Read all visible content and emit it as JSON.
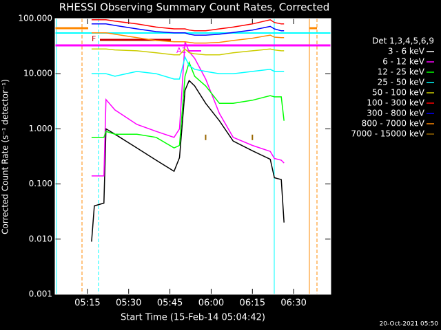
{
  "chart_data": {
    "type": "line",
    "title": "RHESSI Observing Summary Count Rates, Corrected",
    "x_label": "Start Time (15-Feb-14 05:04:42)",
    "y_label": "Corrected Count Rate (s⁻¹ detector⁻¹)",
    "footer": "20-Oct-2021 05:50",
    "legend_title": "Det 1,3,4,5,6,9",
    "annotations": [
      "F",
      "A1"
    ],
    "log_y": true,
    "legend": "right",
    "xlim": [
      3.25,
      103.5
    ],
    "ylim": [
      0.001,
      100
    ],
    "xticks": [
      {
        "value": 15,
        "label": "05:15"
      },
      {
        "value": 30,
        "label": "05:30"
      },
      {
        "value": 45,
        "label": "05:45"
      },
      {
        "value": 60,
        "label": "06:00"
      },
      {
        "value": 75,
        "label": "06:15"
      },
      {
        "value": 90,
        "label": "06:30"
      }
    ],
    "yticks": [
      {
        "value": 0.001,
        "label": "0.001"
      },
      {
        "value": 0.01,
        "label": "0.010"
      },
      {
        "value": 0.1,
        "label": "0.100"
      },
      {
        "value": 1,
        "label": "1.000"
      },
      {
        "value": 10,
        "label": "10.000"
      },
      {
        "value": 100,
        "label": "100.000"
      }
    ],
    "x": [
      16.5,
      17.5,
      21.0,
      21.75,
      25,
      33,
      40,
      46.5,
      48.5,
      50.5,
      52,
      54,
      58,
      63,
      68,
      75,
      81.5,
      83,
      85.5,
      86.5
    ],
    "series": [
      {
        "name": "3 - 6 keV",
        "color": "#000000",
        "values": [
          0.009,
          0.04,
          0.045,
          1.0,
          0.8,
          0.45,
          0.27,
          0.17,
          0.3,
          5,
          7.5,
          6,
          2.9,
          1.4,
          0.6,
          0.4,
          0.28,
          0.13,
          0.12,
          0.02
        ]
      },
      {
        "name": "6 - 12 keV",
        "color": "#ff00ff",
        "values": [
          0.14,
          0.14,
          0.14,
          3.4,
          2.2,
          1.2,
          0.9,
          0.7,
          1.0,
          38,
          25,
          19,
          8,
          1.9,
          0.7,
          0.5,
          0.39,
          0.29,
          0.27,
          0.24
        ]
      },
      {
        "name": "12 - 25 keV",
        "color": "#00ff00",
        "values": [
          0.7,
          0.7,
          0.7,
          0.9,
          0.8,
          0.8,
          0.7,
          0.45,
          0.5,
          9,
          16,
          9,
          6,
          2.9,
          2.9,
          3.3,
          4,
          3.8,
          3.8,
          1.4
        ]
      },
      {
        "name": "25 - 50 keV",
        "color": "#00ffff",
        "values": [
          10,
          10,
          10,
          10,
          9,
          11,
          10,
          8,
          8,
          20,
          14,
          12,
          11,
          10,
          10,
          11,
          12,
          11,
          11,
          11
        ]
      },
      {
        "name": "50 - 100 keV",
        "color": "#cccc00",
        "values": [
          28,
          28,
          28,
          28,
          27,
          26,
          24,
          22,
          22,
          28,
          24,
          23,
          22,
          22,
          24,
          26,
          28,
          27,
          26,
          26
        ]
      },
      {
        "name": "100 - 300 keV",
        "color": "#ff0000",
        "values": [
          95,
          95,
          95,
          95,
          90,
          80,
          70,
          65,
          65,
          65,
          62,
          60,
          60,
          65,
          70,
          80,
          95,
          85,
          80,
          80
        ]
      },
      {
        "name": "300 - 800 keV",
        "color": "#0000ff",
        "values": [
          80,
          80,
          80,
          80,
          75,
          65,
          58,
          55,
          55,
          55,
          52,
          50,
          50,
          52,
          56,
          62,
          72,
          65,
          60,
          60
        ]
      },
      {
        "name": "800 - 7000 keV",
        "color": "#ff8800",
        "values": [
          55,
          55,
          55,
          55,
          52,
          45,
          40,
          38,
          38,
          38,
          37,
          36,
          36,
          37,
          40,
          44,
          50,
          46,
          45,
          45
        ]
      },
      {
        "name": "7000 - 15000 keV",
        "color": "#996600",
        "values": [
          null,
          null,
          null,
          null,
          null,
          null,
          null,
          null,
          null,
          null,
          null,
          null,
          0.7,
          null,
          null,
          0.7,
          null,
          null,
          null,
          null
        ]
      }
    ]
  }
}
